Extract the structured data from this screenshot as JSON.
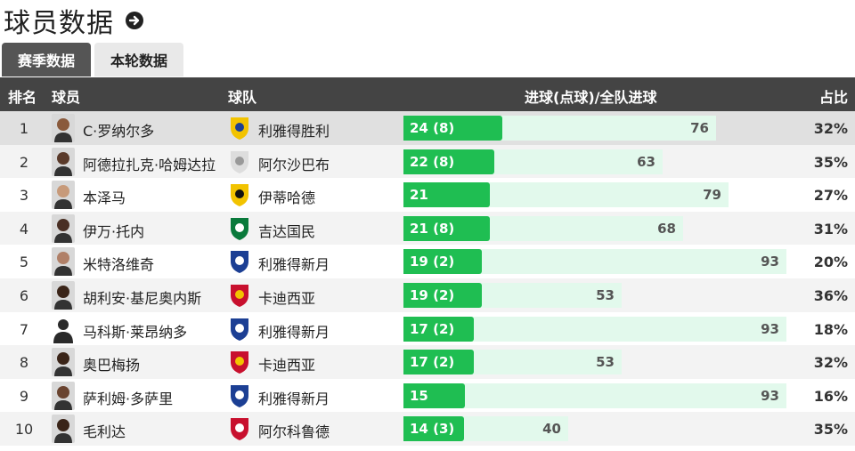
{
  "page": {
    "title": "球员数据",
    "tabs": [
      {
        "label": "赛季数据",
        "active": true
      },
      {
        "label": "本轮数据",
        "active": false
      }
    ]
  },
  "table": {
    "headers": {
      "rank": "排名",
      "player": "球员",
      "team": "球队",
      "goals": "进球(点球)/全队进球",
      "share": "占比"
    },
    "rows": [
      {
        "rank": "1",
        "player": "C·罗纳尔多",
        "team": "利雅得胜利",
        "goals": 24,
        "goals_label": "24 (8)",
        "team_goals": 76,
        "pct": "32%",
        "team_icon": "al-nassr-crest-icon",
        "avatar": "player-avatar"
      },
      {
        "rank": "2",
        "player": "阿德拉扎克·哈姆达拉",
        "team": "阿尔沙巴布",
        "goals": 22,
        "goals_label": "22 (8)",
        "team_goals": 63,
        "pct": "35%",
        "team_icon": "al-shabab-crest-icon",
        "avatar": "player-avatar"
      },
      {
        "rank": "3",
        "player": "本泽马",
        "team": "伊蒂哈德",
        "goals": 21,
        "goals_label": "21",
        "team_goals": 79,
        "pct": "27%",
        "team_icon": "al-ittihad-crest-icon",
        "avatar": "player-avatar"
      },
      {
        "rank": "4",
        "player": "伊万·托内",
        "team": "吉达国民",
        "goals": 21,
        "goals_label": "21 (8)",
        "team_goals": 68,
        "pct": "31%",
        "team_icon": "al-ahli-crest-icon",
        "avatar": "player-avatar"
      },
      {
        "rank": "5",
        "player": "米特洛维奇",
        "team": "利雅得新月",
        "goals": 19,
        "goals_label": "19 (2)",
        "team_goals": 93,
        "pct": "20%",
        "team_icon": "al-hilal-crest-icon",
        "avatar": "player-avatar"
      },
      {
        "rank": "6",
        "player": "胡利安·基尼奥内斯",
        "team": "卡迪西亚",
        "goals": 19,
        "goals_label": "19 (2)",
        "team_goals": 53,
        "pct": "36%",
        "team_icon": "al-qadsiah-crest-icon",
        "avatar": "player-avatar"
      },
      {
        "rank": "7",
        "player": "马科斯·莱昂纳多",
        "team": "利雅得新月",
        "goals": 17,
        "goals_label": "17 (2)",
        "team_goals": 93,
        "pct": "18%",
        "team_icon": "al-hilal-crest-icon",
        "avatar": "player-silhouette"
      },
      {
        "rank": "8",
        "player": "奥巴梅扬",
        "team": "卡迪西亚",
        "goals": 17,
        "goals_label": "17 (2)",
        "team_goals": 53,
        "pct": "32%",
        "team_icon": "al-qadsiah-crest-icon",
        "avatar": "player-avatar"
      },
      {
        "rank": "9",
        "player": "萨利姆·多萨里",
        "team": "利雅得新月",
        "goals": 15,
        "goals_label": "15",
        "team_goals": 93,
        "pct": "16%",
        "team_icon": "al-hilal-crest-icon",
        "avatar": "player-avatar"
      },
      {
        "rank": "10",
        "player": "毛利达",
        "team": "阿尔科鲁德",
        "goals": 14,
        "goals_label": "14 (3)",
        "team_goals": 40,
        "pct": "35%",
        "team_icon": "al-kholood-crest-icon",
        "avatar": "player-avatar"
      }
    ],
    "scale_max": 93
  },
  "colors": {
    "bar_fill": "#1fbe52",
    "bar_track": "#e2f9ec",
    "header_bg": "#444444",
    "tab_active": "#555555"
  }
}
